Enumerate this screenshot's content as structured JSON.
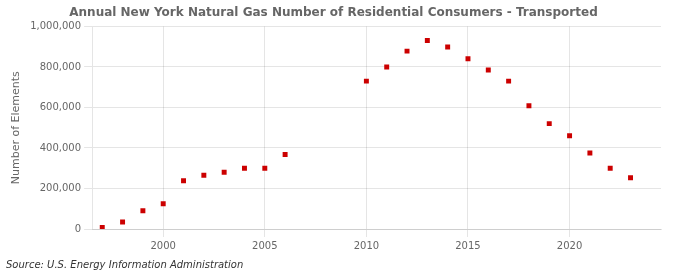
{
  "chart_data": {
    "type": "scatter",
    "title": "Annual New York Natural Gas Number of Residential Consumers - Transported",
    "ylabel": "Number of Elements",
    "annotation": "Source: U.S. Energy Information Administration",
    "x": [
      1997,
      1998,
      1999,
      2000,
      2001,
      2002,
      2003,
      2004,
      2005,
      2006,
      2010,
      2011,
      2012,
      2013,
      2014,
      2015,
      2016,
      2017,
      2018,
      2019,
      2020,
      2021,
      2022,
      2023
    ],
    "values": [
      8000,
      35000,
      90000,
      125000,
      238000,
      265000,
      280000,
      300000,
      300000,
      368000,
      730000,
      800000,
      878000,
      930000,
      898000,
      840000,
      785000,
      730000,
      608000,
      520000,
      460000,
      375000,
      300000,
      253000
    ],
    "color": "#cc0000",
    "marker": "square",
    "xlim": [
      1996.5,
      2024.5
    ],
    "xticks": [
      2000,
      2005,
      2010,
      2015,
      2020
    ],
    "ylim": [
      0,
      1000000
    ],
    "yticks": [
      0,
      {
        "value": 200000,
        "label": "200,000"
      },
      {
        "value": 400000,
        "label": "400,000"
      },
      {
        "value": 600000,
        "label": "600,000"
      },
      {
        "value": 800000,
        "label": "800,000"
      },
      {
        "value": 1000000,
        "label": "1,000,000"
      }
    ],
    "grid": true
  }
}
